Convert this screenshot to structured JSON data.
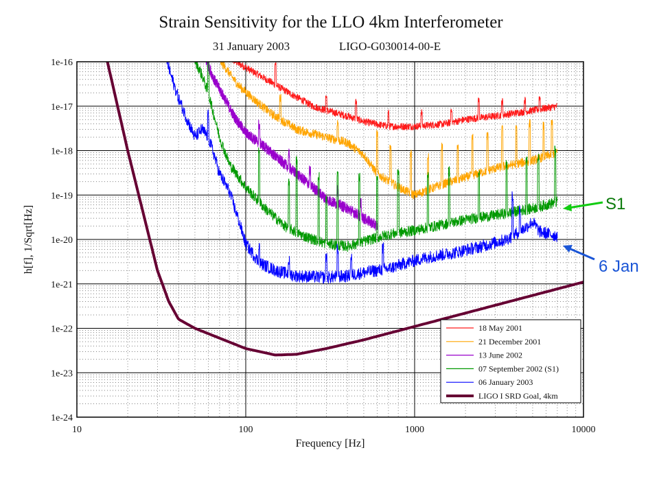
{
  "chart_data": {
    "type": "line",
    "title": "Strain Sensitivity for the LLO 4km Interferometer",
    "subtitle_date": "31 January 2003",
    "subtitle_doc": "LIGO-G030014-00-E",
    "xlabel": "Frequency [Hz]",
    "ylabel": "h[f], 1/Sqrt[Hz]",
    "x_scale": "log",
    "y_scale": "log",
    "xlim": [
      10,
      10000
    ],
    "ylim": [
      1e-24,
      1e-16
    ],
    "x_ticks": [
      {
        "value": 10,
        "label": "10"
      },
      {
        "value": 100,
        "label": "100"
      },
      {
        "value": 1000,
        "label": "1000"
      },
      {
        "value": 10000,
        "label": "10000"
      }
    ],
    "y_ticks": [
      {
        "value": 1e-16,
        "label": "1e-16"
      },
      {
        "value": 1e-17,
        "label": "1e-17"
      },
      {
        "value": 1e-18,
        "label": "1e-18"
      },
      {
        "value": 1e-19,
        "label": "1e-19"
      },
      {
        "value": 1e-20,
        "label": "1e-20"
      },
      {
        "value": 1e-21,
        "label": "1e-21"
      },
      {
        "value": 1e-22,
        "label": "1e-22"
      },
      {
        "value": 1e-23,
        "label": "1e-23"
      },
      {
        "value": 1e-24,
        "label": "1e-24"
      }
    ],
    "grid": "major solid, minor dotted",
    "legend_position": "bottom-right",
    "series": [
      {
        "name": "18 May 2001",
        "color": "#ff1a1a",
        "noise": 0.08,
        "points": [
          [
            80,
            1.2e-16
          ],
          [
            120,
            5e-17
          ],
          [
            180,
            2e-17
          ],
          [
            250,
            1e-17
          ],
          [
            300,
            8e-18
          ],
          [
            400,
            6e-18
          ],
          [
            500,
            4.5e-18
          ],
          [
            700,
            3.5e-18
          ],
          [
            1000,
            3.5e-18
          ],
          [
            1500,
            4e-18
          ],
          [
            2000,
            5e-18
          ],
          [
            3000,
            6e-18
          ],
          [
            5000,
            8e-18
          ],
          [
            7000,
            1e-17
          ]
        ],
        "spikes": [
          [
            150,
            3.0
          ],
          [
            300,
            2.0
          ],
          [
            450,
            2.5
          ],
          [
            700,
            2.0
          ],
          [
            1100,
            2.0
          ],
          [
            1650,
            2.0
          ],
          [
            2400,
            2.5
          ],
          [
            3300,
            2.0
          ],
          [
            4500,
            1.8
          ],
          [
            5500,
            1.8
          ]
        ]
      },
      {
        "name": "21 December 2001",
        "color": "#ffa500",
        "noise": 0.1,
        "points": [
          [
            70,
            1.1e-16
          ],
          [
            90,
            3e-17
          ],
          [
            110,
            1.5e-17
          ],
          [
            140,
            7e-18
          ],
          [
            200,
            3e-18
          ],
          [
            300,
            2e-18
          ],
          [
            400,
            1.5e-18
          ],
          [
            500,
            8e-19
          ],
          [
            600,
            3e-19
          ],
          [
            800,
            1.5e-19
          ],
          [
            1000,
            1e-19
          ],
          [
            1500,
            1.8e-19
          ],
          [
            2000,
            2.5e-19
          ],
          [
            3000,
            4e-19
          ],
          [
            5000,
            6e-19
          ],
          [
            7000,
            9e-19
          ]
        ],
        "spikes": [
          [
            160,
            3.0
          ],
          [
            350,
            2.5
          ],
          [
            600,
            8.0
          ],
          [
            720,
            6.0
          ],
          [
            950,
            8.0
          ],
          [
            1200,
            6.0
          ],
          [
            1450,
            7.0
          ],
          [
            1800,
            6.0
          ],
          [
            2200,
            7.0
          ],
          [
            2700,
            6.0
          ],
          [
            3300,
            7.0
          ],
          [
            4000,
            6.0
          ],
          [
            4800,
            7.0
          ],
          [
            5800,
            5.0
          ],
          [
            6500,
            5.0
          ]
        ]
      },
      {
        "name": "13 June 2002",
        "color": "#9900cc",
        "noise": 0.12,
        "points": [
          [
            58,
            1.1e-16
          ],
          [
            65,
            4e-17
          ],
          [
            75,
            1.5e-17
          ],
          [
            85,
            6e-18
          ],
          [
            100,
            2.5e-18
          ],
          [
            130,
            1.2e-18
          ],
          [
            160,
            6e-19
          ],
          [
            200,
            3e-19
          ],
          [
            250,
            1.5e-19
          ],
          [
            300,
            8e-20
          ],
          [
            400,
            5e-20
          ],
          [
            500,
            3e-20
          ],
          [
            600,
            2e-20
          ]
        ],
        "spikes": [
          [
            120,
            2.5
          ],
          [
            180,
            2.0
          ],
          [
            240,
            2.0
          ],
          [
            350,
            2.0
          ],
          [
            480,
            2.0
          ]
        ]
      },
      {
        "name": "07 September 2002 (S1)",
        "color": "#009900",
        "noise": 0.12,
        "points": [
          [
            50,
            1.1e-16
          ],
          [
            55,
            5e-17
          ],
          [
            60,
            2e-17
          ],
          [
            65,
            6e-18
          ],
          [
            70,
            2e-18
          ],
          [
            80,
            5e-19
          ],
          [
            100,
            1.5e-19
          ],
          [
            130,
            5e-20
          ],
          [
            170,
            2e-20
          ],
          [
            220,
            1.2e-20
          ],
          [
            300,
            8e-21
          ],
          [
            400,
            7e-21
          ],
          [
            500,
            9e-21
          ],
          [
            700,
            1.3e-20
          ],
          [
            1000,
            1.6e-20
          ],
          [
            1500,
            2.2e-20
          ],
          [
            2000,
            2.8e-20
          ],
          [
            3000,
            3.5e-20
          ],
          [
            5000,
            5e-20
          ],
          [
            7000,
            7e-20
          ]
        ],
        "spikes": [
          [
            60,
            60.0
          ],
          [
            120,
            15.0
          ],
          [
            180,
            10.0
          ],
          [
            200,
            40.0
          ],
          [
            270,
            30.0
          ],
          [
            300,
            10.0
          ],
          [
            350,
            40.0
          ],
          [
            470,
            30.0
          ],
          [
            600,
            20.0
          ],
          [
            800,
            25.0
          ],
          [
            1200,
            15.0
          ],
          [
            1600,
            15.0
          ],
          [
            2400,
            12.0
          ],
          [
            3500,
            12.0
          ],
          [
            4600,
            15.0
          ],
          [
            5400,
            12.0
          ],
          [
            6800,
            15.0
          ]
        ]
      },
      {
        "name": "06 January 2003",
        "color": "#0000ff",
        "noise": 0.14,
        "points": [
          [
            34,
            1.1e-16
          ],
          [
            36,
            5e-17
          ],
          [
            40,
            1.5e-17
          ],
          [
            45,
            5e-18
          ],
          [
            50,
            2e-18
          ],
          [
            55,
            3e-18
          ],
          [
            60,
            2e-18
          ],
          [
            65,
            8e-19
          ],
          [
            70,
            3e-19
          ],
          [
            80,
            1.2e-19
          ],
          [
            90,
            3e-20
          ],
          [
            100,
            8e-21
          ],
          [
            120,
            3e-21
          ],
          [
            150,
            2e-21
          ],
          [
            200,
            1.5e-21
          ],
          [
            300,
            1.4e-21
          ],
          [
            400,
            1.5e-21
          ],
          [
            500,
            1.8e-21
          ],
          [
            700,
            2.2e-21
          ],
          [
            900,
            3e-21
          ],
          [
            1200,
            4e-21
          ],
          [
            1700,
            5e-21
          ],
          [
            2500,
            7e-21
          ],
          [
            3500,
            1e-20
          ],
          [
            4500,
            1.8e-20
          ],
          [
            5000,
            2.5e-20
          ],
          [
            5500,
            1.5e-20
          ],
          [
            7000,
            1.2e-20
          ]
        ],
        "spikes": [
          [
            60,
            3.0
          ],
          [
            120,
            2.5
          ],
          [
            180,
            2.0
          ],
          [
            300,
            3.0
          ],
          [
            350,
            4.0
          ],
          [
            420,
            2.5
          ],
          [
            650,
            3.0
          ],
          [
            3800,
            8.0
          ],
          [
            4200,
            3.0
          ]
        ]
      },
      {
        "name": "LIGO I SRD Goal, 4km",
        "color": "#660033",
        "noise": 0,
        "points": [
          [
            15,
            1.2e-16
          ],
          [
            20,
            1e-18
          ],
          [
            30,
            2e-21
          ],
          [
            35,
            4e-22
          ],
          [
            40,
            1.6e-22
          ],
          [
            50,
            1e-22
          ],
          [
            70,
            6e-23
          ],
          [
            100,
            3.5e-23
          ],
          [
            150,
            2.5e-23
          ],
          [
            200,
            2.6e-23
          ],
          [
            300,
            3.5e-23
          ],
          [
            500,
            5.5e-23
          ],
          [
            1000,
            1.1e-22
          ],
          [
            2000,
            2.2e-22
          ],
          [
            5000,
            5.5e-22
          ],
          [
            10000,
            1.1e-21
          ]
        ],
        "spikes": []
      }
    ],
    "annotations": [
      {
        "text": "S1",
        "color": "#0a7a0a",
        "arrow_color": "#11cc11",
        "points_to_series": "07 September 2002 (S1)"
      },
      {
        "text": "6 Jan",
        "color": "#1a55d6",
        "arrow_color": "#1a55d6",
        "points_to_series": "06 January 2003"
      }
    ]
  }
}
